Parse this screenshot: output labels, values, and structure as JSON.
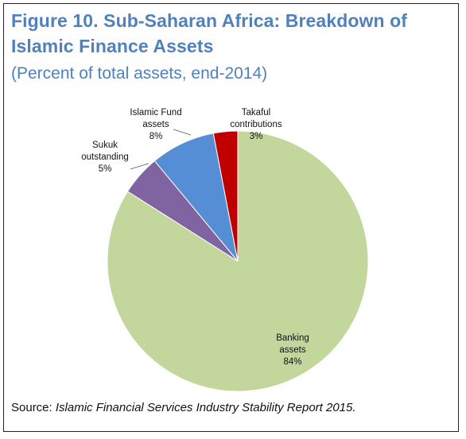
{
  "figure": {
    "title": "Figure 10. Sub-Saharan Africa: Breakdown of Islamic Finance Assets",
    "subtitle": "(Percent of total assets, end-2014)",
    "source_prefix": "Source: ",
    "source_italic": "Islamic Financial Services Industry Stability Report 2015."
  },
  "chart_data": {
    "type": "pie",
    "title": "Figure 10. Sub-Saharan Africa: Breakdown of Islamic Finance Assets",
    "subtitle": "(Percent of total assets, end-2014)",
    "unit": "Percent of total assets",
    "start_direction": "12 o'clock",
    "direction": "clockwise",
    "slices": [
      {
        "name": "Banking assets",
        "label_lines": [
          "Banking",
          "assets"
        ],
        "value": 84,
        "value_label": "84%",
        "color": "#c3d69b"
      },
      {
        "name": "Sukuk outstanding",
        "label_lines": [
          "Sukuk",
          "outstanding"
        ],
        "value": 5,
        "value_label": "5%",
        "color": "#8064a2"
      },
      {
        "name": "Islamic Fund assets",
        "label_lines": [
          "Islamic Fund",
          "assets"
        ],
        "value": 8,
        "value_label": "8%",
        "color": "#558ed5"
      },
      {
        "name": "Takaful contributions",
        "label_lines": [
          "Takaful",
          "contributions"
        ],
        "value": 3,
        "value_label": "3%",
        "color": "#c00000"
      }
    ]
  }
}
